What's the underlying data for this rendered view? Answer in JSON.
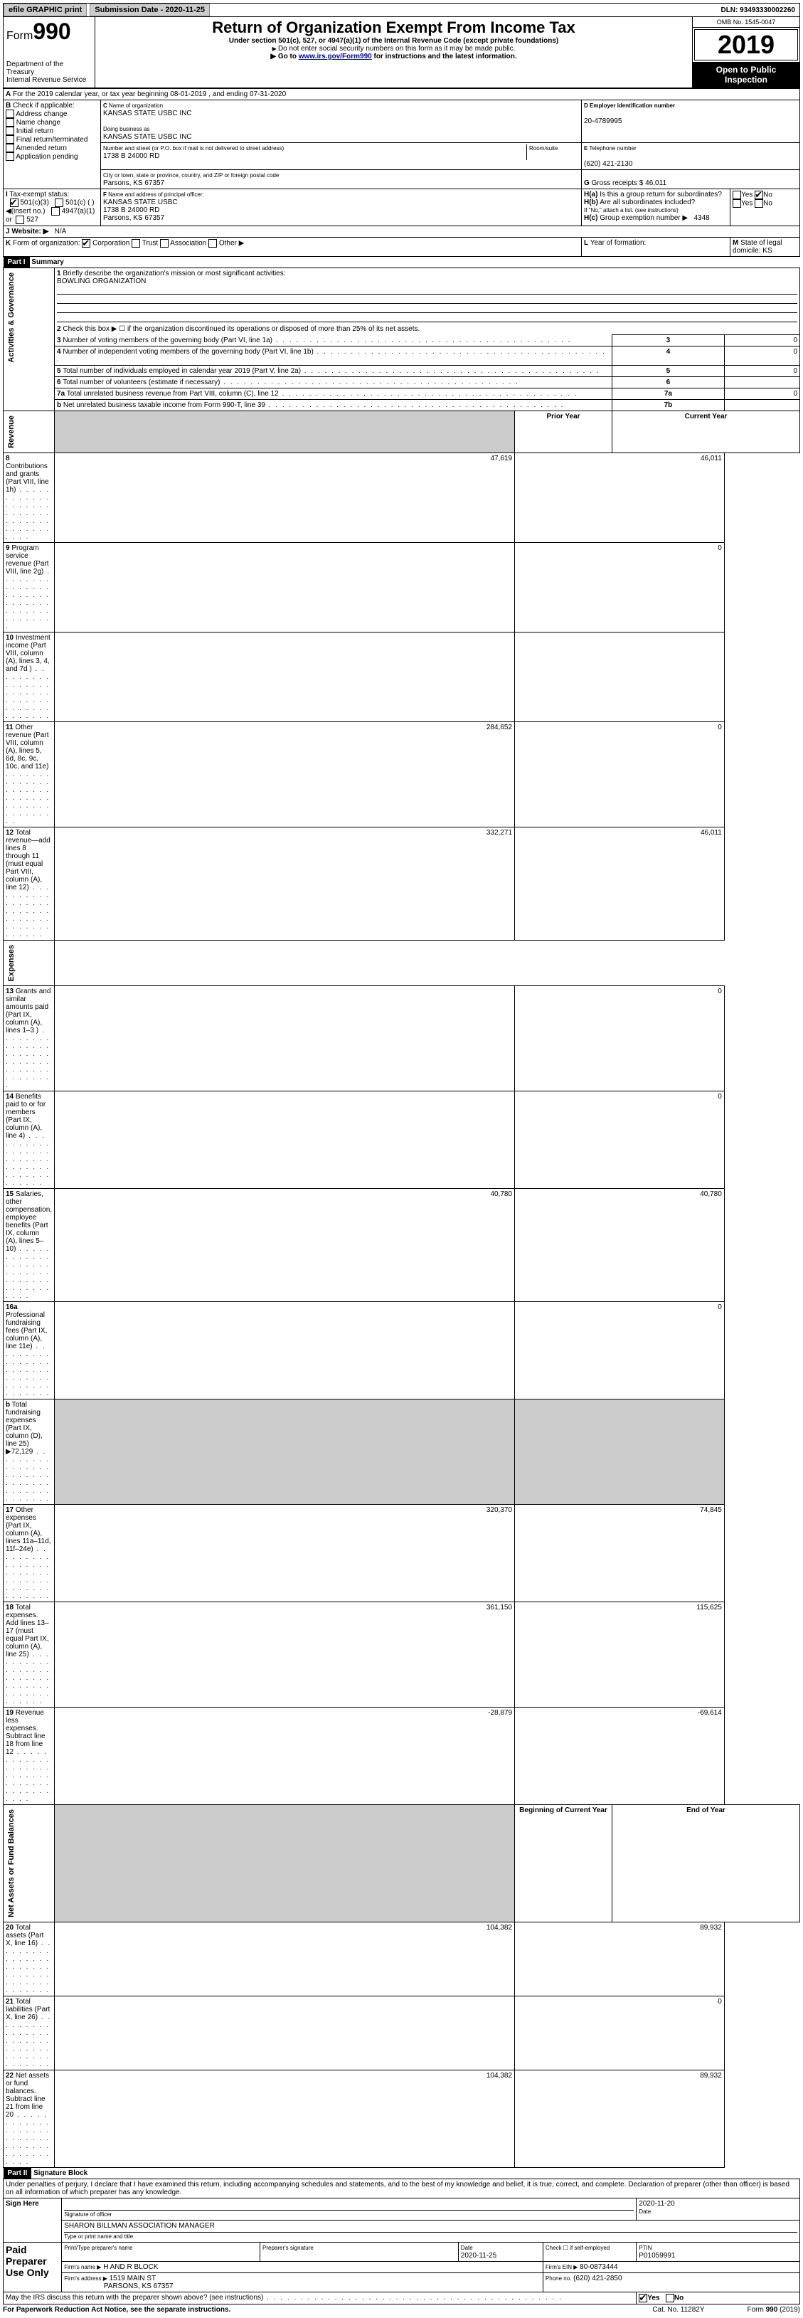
{
  "topbar": {
    "efile": "efile GRAPHIC print",
    "sub_label": "Submission Date - 2020-11-25",
    "dln": "DLN: 93493330002260"
  },
  "header": {
    "form_word": "Form",
    "form_num": "990",
    "dept": "Department of the Treasury",
    "irs": "Internal Revenue Service",
    "title": "Return of Organization Exempt From Income Tax",
    "subtitle": "Under section 501(c), 527, or 4947(a)(1) of the Internal Revenue Code (except private foundations)",
    "note1": "Do not enter social security numbers on this form as it may be made public.",
    "note2_pre": "Go to ",
    "note2_link": "www.irs.gov/Form990",
    "note2_post": " for instructions and the latest information.",
    "omb": "OMB No. 1545-0047",
    "year": "2019",
    "open": "Open to Public Inspection"
  },
  "A": {
    "text": "For the 2019 calendar year, or tax year beginning 08-01-2019    , and ending 07-31-2020"
  },
  "B": {
    "label": "Check if applicable:",
    "opts": [
      "Address change",
      "Name change",
      "Initial return",
      "Final return/terminated",
      "Amended return",
      "Application pending"
    ]
  },
  "C": {
    "name_lbl": "Name of organization",
    "name": "KANSAS STATE USBC INC",
    "dba_lbl": "Doing business as",
    "dba": "KANSAS STATE USBC INC",
    "addr_lbl": "Number and street (or P.O. box if mail is not delivered to street address)",
    "room_lbl": "Room/suite",
    "addr": "1738 B 24000 RD",
    "city_lbl": "City or town, state or province, country, and ZIP or foreign postal code",
    "city": "Parsons, KS  67357"
  },
  "D": {
    "lbl": "Employer identification number",
    "val": "20-4789995"
  },
  "E": {
    "lbl": "Telephone number",
    "val": "(620) 421-2130"
  },
  "G": {
    "lbl_pre": "Gross receipts $",
    "val": "46,011"
  },
  "F": {
    "lbl": "Name and address of principal officer:",
    "name": "KANSAS STATE USBC",
    "addr": "1738 B 24000 RD",
    "city": "Parsons, KS  67357"
  },
  "H": {
    "a": "Is this a group return for subordinates?",
    "b": "Are all subordinates included?",
    "b_note": "If \"No,\" attach a list. (see instructions)",
    "c_lbl": "Group exemption number ▶",
    "c_val": "4348",
    "yes": "Yes",
    "no": "No"
  },
  "I": {
    "lbl": "Tax-exempt status:",
    "opts": [
      "501(c)(3)",
      "501(c) (   ) ◀(insert no.)",
      "4947(a)(1) or",
      "527"
    ]
  },
  "J": {
    "lbl": "Website: ▶",
    "val": "N/A"
  },
  "K": {
    "lbl": "Form of organization:",
    "opts": [
      "Corporation",
      "Trust",
      "Association",
      "Other ▶"
    ]
  },
  "L": {
    "lbl": "Year of formation:"
  },
  "M": {
    "lbl": "State of legal domicile: KS"
  },
  "parts": {
    "p1": "Part I",
    "p1t": "Summary",
    "p2": "Part II",
    "p2t": "Signature Block"
  },
  "sections": {
    "gov": "Activities & Governance",
    "rev": "Revenue",
    "exp": "Expenses",
    "net": "Net Assets or Fund Balances"
  },
  "summary": {
    "l1": "Briefly describe the organization's mission or most significant activities:",
    "l1v": "BOWLING ORGANIZATION",
    "l2": "Check this box ▶ ☐  if the organization discontinued its operations or disposed of more than 25% of its net assets.",
    "l3": "Number of voting members of the governing body (Part VI, line 1a)",
    "l3n": "3",
    "l3v": "0",
    "l4": "Number of independent voting members of the governing body (Part VI, line 1b)",
    "l4n": "4",
    "l4v": "0",
    "l5": "Total number of individuals employed in calendar year 2019 (Part V, line 2a)",
    "l5n": "5",
    "l5v": "0",
    "l6": "Total number of volunteers (estimate if necessary)",
    "l6n": "6",
    "l6v": "",
    "l7a": "Total unrelated business revenue from Part VIII, column (C), line 12",
    "l7an": "7a",
    "l7av": "0",
    "l7b": "Net unrelated business taxable income from Form 990-T, line 39",
    "l7bn": "7b",
    "l7bv": "",
    "hdr_prior": "Prior Year",
    "hdr_cur": "Current Year",
    "rows": [
      {
        "n": "8",
        "t": "Contributions and grants (Part VIII, line 1h)",
        "p": "47,619",
        "c": "46,011"
      },
      {
        "n": "9",
        "t": "Program service revenue (Part VIII, line 2g)",
        "p": "",
        "c": "0"
      },
      {
        "n": "10",
        "t": "Investment income (Part VIII, column (A), lines 3, 4, and 7d )",
        "p": "",
        "c": ""
      },
      {
        "n": "11",
        "t": "Other revenue (Part VIII, column (A), lines 5, 6d, 8c, 9c, 10c, and 11e)",
        "p": "284,652",
        "c": "0"
      },
      {
        "n": "12",
        "t": "Total revenue—add lines 8 through 11 (must equal Part VIII, column (A), line 12)",
        "p": "332,271",
        "c": "46,011"
      },
      {
        "n": "13",
        "t": "Grants and similar amounts paid (Part IX, column (A), lines 1–3 )",
        "p": "",
        "c": "0"
      },
      {
        "n": "14",
        "t": "Benefits paid to or for members (Part IX, column (A), line 4)",
        "p": "",
        "c": "0"
      },
      {
        "n": "15",
        "t": "Salaries, other compensation, employee benefits (Part IX, column (A), lines 5–10)",
        "p": "40,780",
        "c": "40,780"
      },
      {
        "n": "16a",
        "t": "Professional fundraising fees (Part IX, column (A), line 11e)",
        "p": "",
        "c": "0"
      },
      {
        "n": "b",
        "t": "Total fundraising expenses (Part IX, column (D), line 25) ▶72,129",
        "p": "GRAY",
        "c": "GRAY"
      },
      {
        "n": "17",
        "t": "Other expenses (Part IX, column (A), lines 11a–11d, 11f–24e)",
        "p": "320,370",
        "c": "74,845"
      },
      {
        "n": "18",
        "t": "Total expenses. Add lines 13–17 (must equal Part IX, column (A), line 25)",
        "p": "361,150",
        "c": "115,625"
      },
      {
        "n": "19",
        "t": "Revenue less expenses. Subtract line 18 from line 12",
        "p": "-28,879",
        "c": "-69,614"
      }
    ],
    "hdr_beg": "Beginning of Current Year",
    "hdr_end": "End of Year",
    "net": [
      {
        "n": "20",
        "t": "Total assets (Part X, line 16)",
        "p": "104,382",
        "c": "89,932"
      },
      {
        "n": "21",
        "t": "Total liabilities (Part X, line 26)",
        "p": "",
        "c": "0"
      },
      {
        "n": "22",
        "t": "Net assets or fund balances. Subtract line 21 from line 20",
        "p": "104,382",
        "c": "89,932"
      }
    ]
  },
  "sig": {
    "perjury": "Under penalties of perjury, I declare that I have examined this return, including accompanying schedules and statements, and to the best of my knowledge and belief, it is true, correct, and complete. Declaration of preparer (other than officer) is based on all information of which preparer has any knowledge.",
    "sign_here": "Sign Here",
    "sig_officer": "Signature of officer",
    "date": "Date",
    "sig_date": "2020-11-20",
    "name_title": "SHARON BILLMAN  ASSOCIATION MANAGER",
    "type_name": "Type or print name and title",
    "paid": "Paid Preparer Use Only",
    "h1": "Print/Type preparer's name",
    "h2": "Preparer's signature",
    "h3": "Date",
    "h3v": "2020-11-25",
    "h4": "Check ☐ if self-employed",
    "h5": "PTIN",
    "h5v": "P01059991",
    "firm_lbl": "Firm's name   ▶",
    "firm": "H AND R BLOCK",
    "ein_lbl": "Firm's EIN ▶",
    "ein": "80-0873444",
    "addr_lbl": "Firm's address ▶",
    "addr1": "1519 MAIN ST",
    "addr2": "PARSONS, KS  67357",
    "phone_lbl": "Phone no.",
    "phone": "(620) 421-2850",
    "discuss": "May the IRS discuss this return with the preparer shown above? (see instructions)"
  },
  "footer": {
    "pra": "For Paperwork Reduction Act Notice, see the separate instructions.",
    "cat": "Cat. No. 11282Y",
    "form": "Form 990 (2019)"
  }
}
